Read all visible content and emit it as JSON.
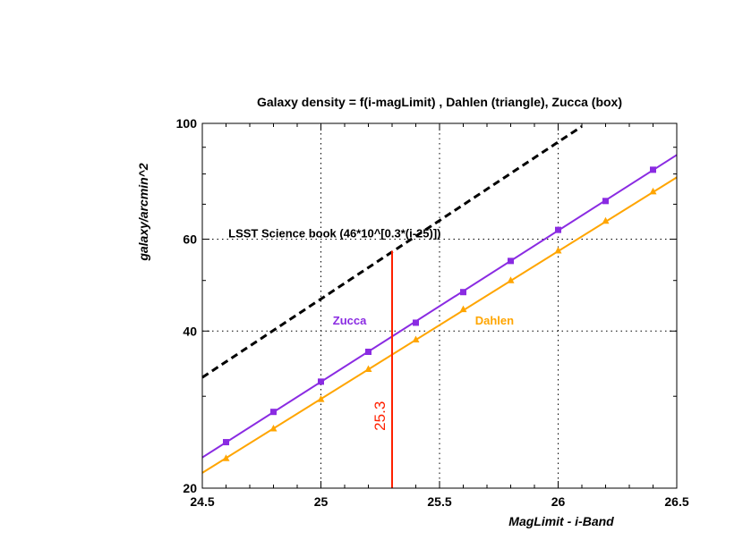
{
  "chart_data": {
    "type": "line",
    "title": "Galaxy density = f(i-magLimit) , Dahlen (triangle), Zucca (box)",
    "xlabel": "MagLimit - i-Band",
    "ylabel": "galaxy/arcmin^2",
    "xlim": [
      24.5,
      26.5
    ],
    "ylim": [
      20,
      100
    ],
    "yscale": "log",
    "grid": true,
    "x_ticks": [
      24.5,
      25,
      25.5,
      26,
      26.5
    ],
    "x_tick_labels": [
      "24.5",
      "25",
      "25.5",
      "26",
      "26.5"
    ],
    "y_ticks": [
      20,
      40,
      60,
      100
    ],
    "y_tick_labels": [
      "20",
      "40",
      "60",
      "100"
    ],
    "series": [
      {
        "name": "Zucca",
        "marker": "square",
        "color": "#8a2be2",
        "x": [
          24.6,
          24.8,
          25.0,
          25.2,
          25.4,
          25.6,
          25.8,
          26.0,
          26.2,
          26.4
        ],
        "y": [
          24.5,
          28.0,
          32.0,
          36.5,
          41.5,
          47.5,
          54.5,
          62.5,
          71.0,
          81.5
        ],
        "fit_x": [
          24.5,
          26.5
        ],
        "fit_y": [
          22.9,
          87.0
        ]
      },
      {
        "name": "Dahlen",
        "marker": "triangle",
        "color": "#ffa500",
        "x": [
          24.6,
          24.8,
          25.0,
          25.2,
          25.4,
          25.6,
          25.8,
          26.0,
          26.2,
          26.4
        ],
        "y": [
          22.8,
          26.0,
          29.6,
          33.8,
          38.5,
          44.0,
          50.0,
          57.0,
          65.0,
          74.0
        ],
        "fit_x": [
          24.5,
          26.5
        ],
        "fit_y": [
          21.4,
          78.8
        ]
      },
      {
        "name": "LSST Science book (46*10^[0.3*(i-25)])",
        "style": "dashed",
        "color": "#000000",
        "x": [
          24.5,
          26.1
        ],
        "y": [
          32.6,
          98.7
        ]
      }
    ],
    "vline": {
      "x": 25.3,
      "label": "25.3",
      "y_from": 20,
      "y_to": 57,
      "color": "#ff2000"
    },
    "annotations": [
      {
        "text": "LSST Science book (46*10^[0.3*(i-25)])",
        "x": 24.61,
        "y": 60.5,
        "color": "#000000"
      },
      {
        "text": "Zucca",
        "x": 25.05,
        "y": 41.2,
        "color": "#8a2be2"
      },
      {
        "text": "Dahlen",
        "x": 25.65,
        "y": 41.2,
        "color": "#ffa500"
      }
    ]
  }
}
